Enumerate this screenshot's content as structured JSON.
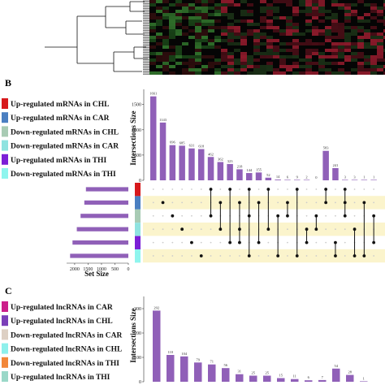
{
  "panel_b": {
    "letter": "B",
    "legend": [
      {
        "label": "Up-regulated mRNAs in CHL",
        "color": "#d7191c"
      },
      {
        "label": "Up-regulated mRNAs in CAR",
        "color": "#4a7fc1"
      },
      {
        "label": "Down-regulated mRNAs in CHL",
        "color": "#a8cbb4"
      },
      {
        "label": "Down-regulated mRNAs in CAR",
        "color": "#8fe3e0"
      },
      {
        "label": "Up-regulated mRNAs in THI",
        "color": "#7b1fd6"
      },
      {
        "label": "Down-regulated mRNAs in THI",
        "color": "#8ff5ee"
      }
    ]
  },
  "panel_c": {
    "letter": "C",
    "legend": [
      {
        "label": "Up-regulated lncRNAs in CAR",
        "color": "#cc1f8a"
      },
      {
        "label": "Up-regulated lncRNAs in CHL",
        "color": "#7b3fb8"
      },
      {
        "label": "Down-regulated lncRNAs in CAR",
        "color": "#ddd0c4"
      },
      {
        "label": "Down-regulated lncRNAs in CHL",
        "color": "#8ef0ec"
      },
      {
        "label": "Down-regulated lncRNAs in THI",
        "color": "#f2873a"
      },
      {
        "label": "Up-regulated lncRNAs in THI",
        "color": "#9ad8c8"
      }
    ]
  },
  "colors": {
    "bar": "#9060b8",
    "dot": "#111111",
    "band": "#fbf4cc",
    "empty_dot": "#cccccc"
  },
  "chart_data": [
    {
      "type": "bar",
      "title": "",
      "ylabel": "Intersections Size",
      "ylim": [
        0,
        1800
      ],
      "y_ticks": [
        0,
        500,
        1000,
        1500
      ],
      "values": [
        1661,
        1143,
        696,
        685,
        631,
        618,
        462,
        362,
        323,
        218,
        144,
        155,
        52,
        14,
        6,
        9,
        2,
        0,
        583,
        241,
        3,
        3,
        1,
        1
      ],
      "value_labels": [
        "1661",
        "1143",
        "696",
        "685",
        "631",
        "618",
        "462",
        "362",
        "323",
        "218",
        "144",
        "155",
        "52",
        "14",
        "6",
        "9",
        "2",
        "0",
        "583",
        "241",
        "3",
        "3",
        "1",
        "1"
      ],
      "set_size": {
        "xlabel": "Set Size",
        "ticks": [
          2000,
          1500,
          1000,
          500,
          0
        ],
        "xlim": [
          2300,
          0
        ],
        "values": [
          1580,
          1640,
          1780,
          1920,
          2080,
          2170
        ]
      },
      "matrix": [
        [],
        [
          1
        ],
        [
          2
        ],
        [
          3
        ],
        [
          4
        ],
        [
          5
        ],
        [
          0,
          2
        ],
        [
          1,
          3
        ],
        [
          0,
          4
        ],
        [
          1,
          3,
          4
        ],
        [
          0,
          2,
          5
        ],
        [
          1,
          4
        ],
        [
          0,
          3
        ],
        [
          2,
          5
        ],
        [
          1,
          2
        ],
        [
          0,
          5
        ],
        [
          3,
          4
        ],
        [
          2,
          3
        ],
        [
          0,
          1
        ],
        [
          4,
          5
        ],
        [
          0,
          1,
          2
        ],
        [
          3,
          5
        ],
        [
          1,
          5
        ],
        [
          2,
          4
        ]
      ]
    },
    {
      "type": "bar",
      "title": "",
      "ylabel": "Intersections Size",
      "ylim": [
        0,
        350
      ],
      "y_ticks": [
        0,
        100,
        200,
        300
      ],
      "values": [
        292,
        110,
        104,
        79,
        71,
        56,
        31,
        25,
        25,
        15,
        11,
        6,
        7,
        54,
        28,
        1
      ],
      "value_labels": [
        "292",
        "110",
        "104",
        "79",
        "71",
        "56",
        "31",
        "25",
        "25",
        "15",
        "11",
        "6",
        "7",
        "54",
        "28",
        "1"
      ]
    }
  ]
}
